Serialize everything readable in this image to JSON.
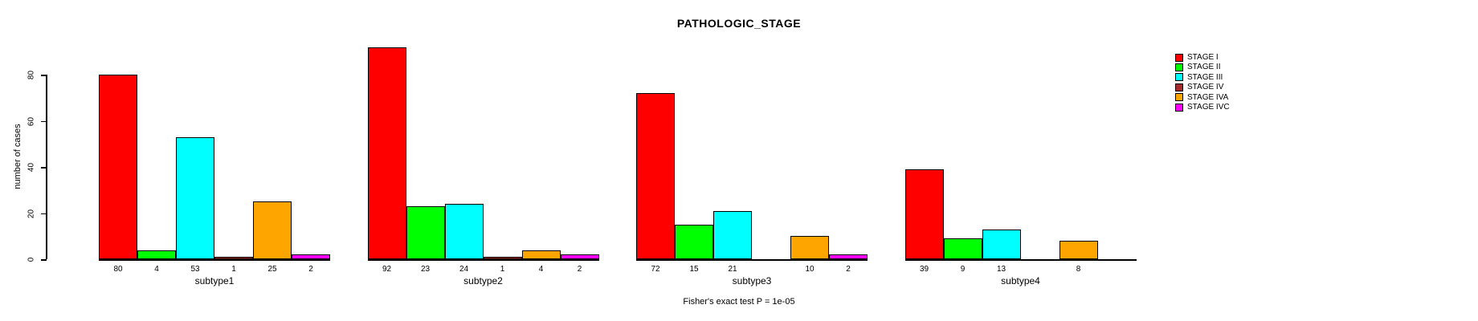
{
  "title": "PATHOLOGIC_STAGE",
  "footer": "Fisher's exact test P = 1e-05",
  "chart_data": {
    "type": "bar",
    "title": "PATHOLOGIC_STAGE",
    "ylabel": "number of cases",
    "footer_note": "Fisher's exact test P = 1e-05",
    "categories": [
      "subtype1",
      "subtype2",
      "subtype3",
      "subtype4"
    ],
    "series": [
      {
        "name": "STAGE I",
        "color": "#FF0000",
        "values": [
          80,
          92,
          72,
          39
        ]
      },
      {
        "name": "STAGE II",
        "color": "#00FF00",
        "values": [
          4,
          23,
          15,
          9
        ]
      },
      {
        "name": "STAGE III",
        "color": "#00FFFF",
        "values": [
          53,
          24,
          21,
          13
        ]
      },
      {
        "name": "STAGE IV",
        "color": "#A52A2A",
        "values": [
          1,
          1,
          0,
          0
        ]
      },
      {
        "name": "STAGE IVA",
        "color": "#FFA500",
        "values": [
          25,
          4,
          10,
          8
        ]
      },
      {
        "name": "STAGE IVC",
        "color": "#FF00FF",
        "values": [
          2,
          2,
          2,
          0
        ]
      }
    ],
    "yticks": [
      0,
      20,
      40,
      60,
      80
    ],
    "ylim": [
      0,
      92
    ],
    "grid": false,
    "bar_value_labels_shown": true,
    "zero_bars_hidden": true,
    "legend_position": "top-right",
    "legend": [
      "STAGE I",
      "STAGE II",
      "STAGE III",
      "STAGE IV",
      "STAGE IVA",
      "STAGE IVC"
    ]
  }
}
